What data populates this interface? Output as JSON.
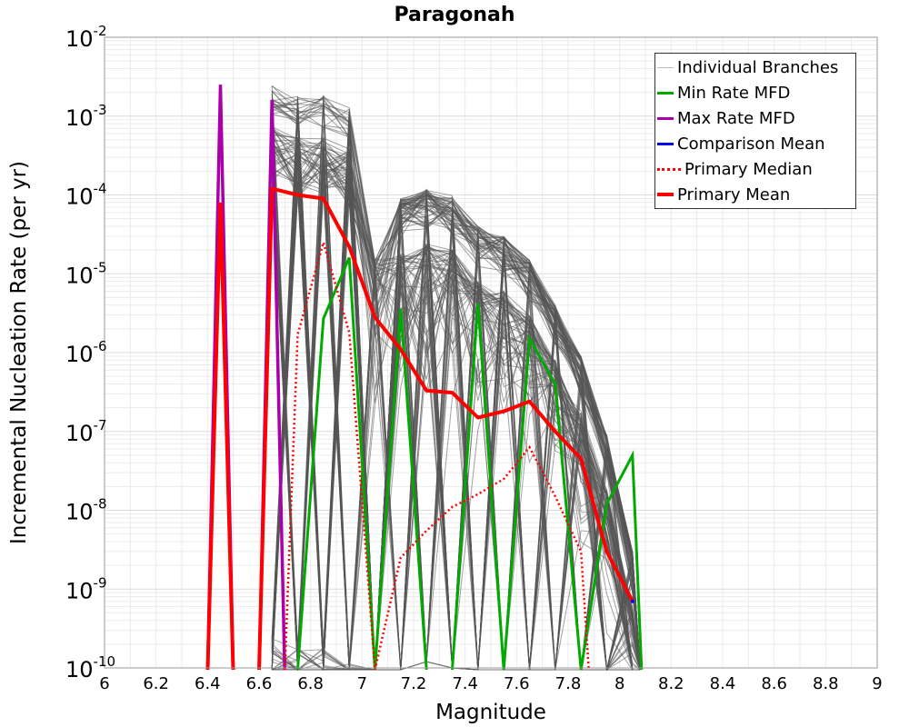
{
  "chart_data": {
    "type": "line",
    "title": "Paragonah",
    "xlabel": "Magnitude",
    "ylabel": "Incremental Nucleation Rate (per yr)",
    "xlim": [
      6,
      9
    ],
    "ylim_exponents": [
      -10,
      -2
    ],
    "yscale": "log",
    "grid": true,
    "legend_position": "top-right",
    "x_ticks": [
      "6",
      "6.2",
      "6.4",
      "6.6",
      "6.8",
      "7",
      "7.2",
      "7.4",
      "7.6",
      "7.8",
      "8",
      "8.2",
      "8.4",
      "8.6",
      "8.8",
      "9"
    ],
    "y_ticks": [
      {
        "base": "10",
        "exp": "-10"
      },
      {
        "base": "10",
        "exp": "-9"
      },
      {
        "base": "10",
        "exp": "-8"
      },
      {
        "base": "10",
        "exp": "-7"
      },
      {
        "base": "10",
        "exp": "-6"
      },
      {
        "base": "10",
        "exp": "-5"
      },
      {
        "base": "10",
        "exp": "-4"
      },
      {
        "base": "10",
        "exp": "-3"
      },
      {
        "base": "10",
        "exp": "-2"
      }
    ],
    "series": [
      {
        "name": "Individual Branches",
        "color": "#555555",
        "style": "thin",
        "x": [
          6.65,
          6.75,
          6.85,
          6.95,
          7.05,
          7.15,
          7.25,
          7.35,
          7.45,
          7.55,
          7.65,
          7.75,
          7.85,
          7.95,
          8.05
        ],
        "y_envelope_max": [
          0.0025,
          0.0018,
          0.0018,
          0.0013,
          3e-05,
          9e-05,
          0.00012,
          0.0001,
          4e-05,
          3e-05,
          1.5e-05,
          4e-06,
          9e-07,
          9e-08,
          3e-09
        ]
      },
      {
        "name": "Min Rate MFD",
        "color": "#00aa00",
        "x": [
          6.65,
          6.75,
          6.85,
          6.95,
          7.05,
          7.15,
          7.25,
          7.35,
          7.45,
          7.55,
          7.65,
          7.75,
          7.85,
          7.95,
          8.05
        ],
        "y": [
          null,
          null,
          2.7e-06,
          1.6e-05,
          null,
          3.6e-06,
          null,
          null,
          4.2e-06,
          null,
          1.5e-06,
          4e-07,
          null,
          1.2e-08,
          5e-08
        ]
      },
      {
        "name": "Max Rate MFD",
        "color": "#aa00aa",
        "x": [
          6.45,
          6.65
        ],
        "y": [
          0.0025,
          0.0016
        ]
      },
      {
        "name": "Comparison Mean",
        "color": "#0000ee",
        "x": [
          8.05
        ],
        "y": [
          7e-10
        ]
      },
      {
        "name": "Primary Median",
        "color": "#ff0000",
        "style": "dotted",
        "x": [
          6.75,
          6.85,
          6.95,
          7.05,
          7.15,
          7.25,
          7.35,
          7.45,
          7.55,
          7.65,
          7.75,
          7.85
        ],
        "y": [
          1.7e-06,
          2.5e-05,
          1.8e-06,
          null,
          2.5e-09,
          5.5e-09,
          1.1e-08,
          1.6e-08,
          2.5e-08,
          6.3e-08,
          1.5e-08,
          3e-09
        ]
      },
      {
        "name": "Primary Mean",
        "color": "#ff0000",
        "x": [
          6.45,
          6.65,
          6.75,
          6.85,
          6.95,
          7.05,
          7.15,
          7.25,
          7.35,
          7.45,
          7.55,
          7.65,
          7.75,
          7.85,
          7.95,
          8.05
        ],
        "y": [
          8e-05,
          0.00012,
          0.0001,
          9e-05,
          2.2e-05,
          2.8e-06,
          1.1e-06,
          3.3e-07,
          3.1e-07,
          1.5e-07,
          1.8e-07,
          2.4e-07,
          1e-07,
          4.5e-08,
          3e-09,
          7e-10
        ]
      }
    ]
  }
}
